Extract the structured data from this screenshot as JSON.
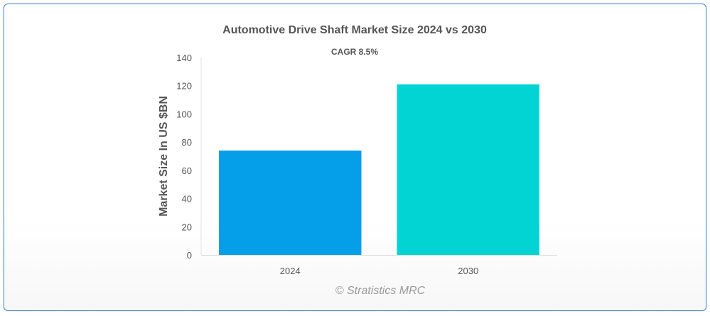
{
  "chart_data": {
    "type": "bar",
    "title": "Automotive Drive Shaft Market Size 2024 vs 2030",
    "subtitle": "CAGR 8.5%",
    "xlabel": "",
    "ylabel": "Market Size In US $BN",
    "categories": [
      "2024",
      "2030"
    ],
    "values": [
      74,
      121
    ],
    "colors": [
      "#049ee9",
      "#02d4d4"
    ],
    "ylim": [
      0,
      140
    ],
    "yticks": [
      0,
      20,
      40,
      60,
      80,
      100,
      120,
      140
    ],
    "grid": false,
    "legend": "none"
  },
  "watermark": "© Stratistics MRC"
}
